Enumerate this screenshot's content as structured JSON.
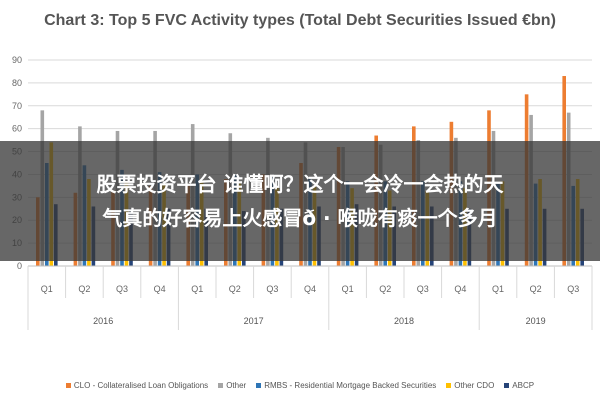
{
  "chart_data": {
    "type": "bar",
    "title": "Chart 3: Top 5 FVC Activity types (Total Debt Securities Issued €bn)",
    "ylim": [
      0,
      90
    ],
    "yticks": [
      0,
      10,
      20,
      30,
      40,
      50,
      60,
      70,
      80,
      90
    ],
    "grid": true,
    "legend_position": "bottom",
    "categories": [
      "Q1",
      "Q2",
      "Q3",
      "Q4",
      "Q1",
      "Q2",
      "Q3",
      "Q4",
      "Q1",
      "Q2",
      "Q3",
      "Q4",
      "Q1",
      "Q2",
      "Q3"
    ],
    "year_groups": [
      {
        "label": "2016",
        "start": 0,
        "count": 4
      },
      {
        "label": "2017",
        "start": 4,
        "count": 4
      },
      {
        "label": "2018",
        "start": 8,
        "count": 4
      },
      {
        "label": "2019",
        "start": 12,
        "count": 3
      }
    ],
    "series": [
      {
        "name": "CLO - Collateralised Loan Obligations",
        "color": "#ED7D31",
        "values": [
          30,
          32,
          33,
          35,
          36,
          38,
          40,
          45,
          52,
          57,
          61,
          63,
          68,
          75,
          83
        ]
      },
      {
        "name": "Other",
        "color": "#A5A5A5",
        "values": [
          68,
          61,
          59,
          59,
          62,
          58,
          56,
          54,
          52,
          53,
          55,
          56,
          59,
          66,
          67
        ]
      },
      {
        "name": "RMBS - Residential Mortgage Backed Securities",
        "color": "#2E75B6",
        "values": [
          45,
          44,
          42,
          41,
          40,
          40,
          39,
          38,
          37,
          37,
          37,
          37,
          36,
          36,
          35
        ]
      },
      {
        "name": "Other CDO",
        "color": "#FFC000",
        "values": [
          54,
          38,
          37,
          36,
          37,
          36,
          35,
          35,
          34,
          33,
          33,
          34,
          37,
          38,
          38
        ]
      },
      {
        "name": "ABCP",
        "color": "#264478",
        "values": [
          27,
          26,
          25,
          25,
          25,
          24,
          25,
          26,
          27,
          26,
          26,
          25,
          25,
          25,
          25
        ]
      }
    ]
  },
  "overlay": {
    "line1": "股票投资平台 谁懂啊？这个一会冷一会热的天",
    "line2": "气真的好容易上火感冒ð · 喉咙有痰一个多月"
  }
}
